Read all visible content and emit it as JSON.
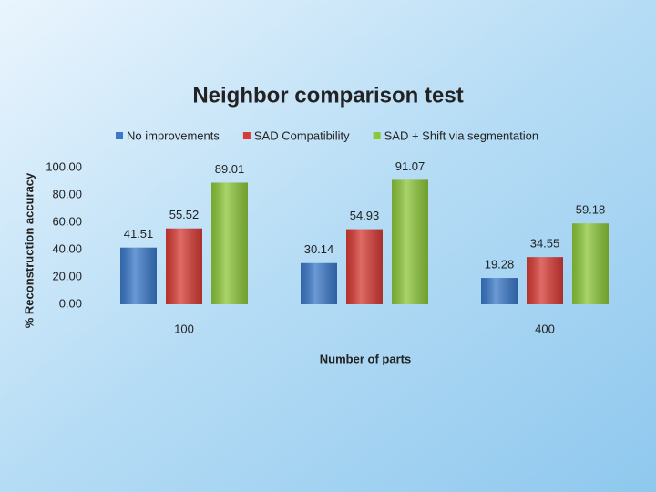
{
  "chart_data": {
    "type": "bar",
    "title": "Neighbor comparison test",
    "x_label": "Number of parts",
    "y_label": "% Reconstruction accuracy",
    "categories": [
      "100",
      null,
      "400"
    ],
    "series": [
      {
        "name": "No improvements",
        "color": "#3a78c8",
        "values": [
          41.51,
          30.14,
          19.28
        ]
      },
      {
        "name": "SAD Compatibility",
        "color": "#d63a34",
        "values": [
          55.52,
          54.93,
          34.55
        ]
      },
      {
        "name": "SAD + Shift via segmentation",
        "color": "#8cc63a",
        "values": [
          89.01,
          91.07,
          59.18
        ]
      }
    ],
    "ylim": [
      0,
      100
    ],
    "yticks": [
      {
        "value": 0,
        "label": "0.00"
      },
      {
        "value": 20,
        "label": "20.00"
      },
      {
        "value": 40,
        "label": "40.00"
      },
      {
        "value": 60,
        "label": "60.00"
      },
      {
        "value": 80,
        "label": "80.00"
      },
      {
        "value": 100,
        "label": "100.00"
      }
    ],
    "legend": "top"
  }
}
